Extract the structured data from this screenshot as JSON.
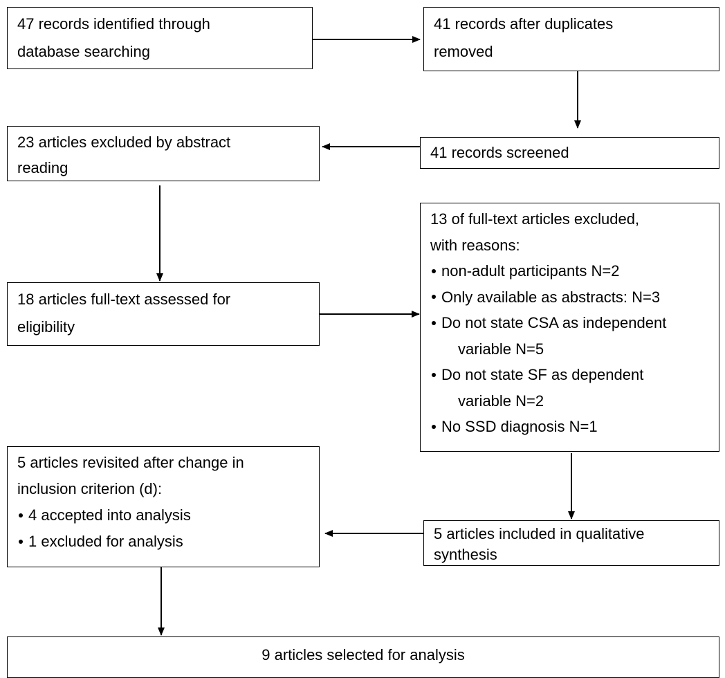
{
  "nodes": [
    {
      "lines": [
        "47 records identified through",
        "database searching"
      ]
    },
    {
      "lines": [
        "41 records after duplicates",
        "removed"
      ]
    },
    {
      "lines": [
        "23 articles excluded by abstract",
        "reading"
      ]
    },
    {
      "lines": [
        "41 records screened"
      ]
    },
    {
      "lines": [
        "18 articles full-text assessed for",
        "eligibility"
      ]
    },
    {
      "lines": [
        "13 of full-text articles excluded,",
        "with reasons:"
      ],
      "items": [
        [
          "non-adult participants N=2"
        ],
        [
          "Only available as abstracts: N=3"
        ],
        [
          "Do not state CSA as independent",
          "variable N=5"
        ],
        [
          "Do not state SF as dependent",
          "variable N=2"
        ],
        [
          "No SSD diagnosis N=1"
        ]
      ]
    },
    {
      "lines": [
        "5 articles revisited after change in",
        "inclusion criterion (d):"
      ],
      "items": [
        [
          "4 accepted into analysis"
        ],
        [
          "1 excluded for analysis"
        ]
      ]
    },
    {
      "lines": [
        "5 articles included in qualitative",
        "synthesis"
      ]
    },
    {
      "lines": [
        "9 articles selected for analysis"
      ]
    }
  ]
}
